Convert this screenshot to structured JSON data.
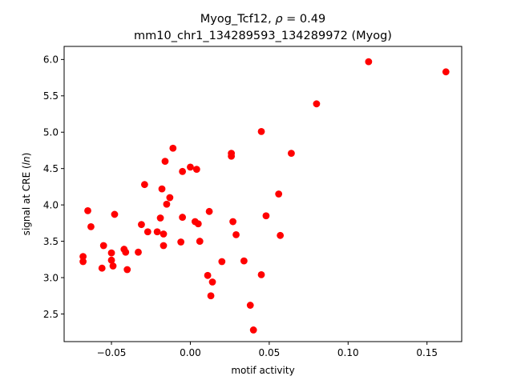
{
  "chart_data": {
    "type": "scatter",
    "title_line1_prefix": "Myog_Tcf12, ",
    "title_line1_rho_symbol": "ρ",
    "title_line1_rho_value": " = 0.49",
    "title_line2": "mm10_chr1_134289593_134289972 (Myog)",
    "xlabel": "motif activity",
    "ylabel_prefix": "signal at CRE (",
    "ylabel_italic": "ln",
    "ylabel_suffix": ")",
    "xlim": [
      -0.08,
      0.172
    ],
    "ylim": [
      2.12,
      6.18
    ],
    "xticks": [
      {
        "value": -0.05,
        "label": "−0.05"
      },
      {
        "value": 0.0,
        "label": "0.00"
      },
      {
        "value": 0.05,
        "label": "0.05"
      },
      {
        "value": 0.1,
        "label": "0.10"
      },
      {
        "value": 0.15,
        "label": "0.15"
      }
    ],
    "yticks": [
      {
        "value": 2.5,
        "label": "2.5"
      },
      {
        "value": 3.0,
        "label": "3.0"
      },
      {
        "value": 3.5,
        "label": "3.5"
      },
      {
        "value": 4.0,
        "label": "4.0"
      },
      {
        "value": 4.5,
        "label": "4.5"
      },
      {
        "value": 5.0,
        "label": "5.0"
      },
      {
        "value": 5.5,
        "label": "5.5"
      },
      {
        "value": 6.0,
        "label": "6.0"
      }
    ],
    "grid": false,
    "point_color": "#ff0000",
    "points": [
      {
        "x": -0.068,
        "y": 3.29
      },
      {
        "x": -0.068,
        "y": 3.22
      },
      {
        "x": -0.065,
        "y": 3.92
      },
      {
        "x": -0.063,
        "y": 3.7
      },
      {
        "x": -0.056,
        "y": 3.13
      },
      {
        "x": -0.055,
        "y": 3.44
      },
      {
        "x": -0.05,
        "y": 3.34
      },
      {
        "x": -0.05,
        "y": 3.24
      },
      {
        "x": -0.049,
        "y": 3.16
      },
      {
        "x": -0.048,
        "y": 3.87
      },
      {
        "x": -0.042,
        "y": 3.39
      },
      {
        "x": -0.041,
        "y": 3.35
      },
      {
        "x": -0.04,
        "y": 3.11
      },
      {
        "x": -0.033,
        "y": 3.35
      },
      {
        "x": -0.031,
        "y": 3.73
      },
      {
        "x": -0.029,
        "y": 4.28
      },
      {
        "x": -0.027,
        "y": 3.63
      },
      {
        "x": -0.021,
        "y": 3.63
      },
      {
        "x": -0.019,
        "y": 3.82
      },
      {
        "x": -0.018,
        "y": 4.22
      },
      {
        "x": -0.017,
        "y": 3.6
      },
      {
        "x": -0.017,
        "y": 3.44
      },
      {
        "x": -0.016,
        "y": 4.6
      },
      {
        "x": -0.015,
        "y": 4.01
      },
      {
        "x": -0.013,
        "y": 4.1
      },
      {
        "x": -0.011,
        "y": 4.78
      },
      {
        "x": -0.006,
        "y": 3.49
      },
      {
        "x": -0.005,
        "y": 4.46
      },
      {
        "x": -0.005,
        "y": 3.83
      },
      {
        "x": 0.0,
        "y": 4.52
      },
      {
        "x": 0.003,
        "y": 3.77
      },
      {
        "x": 0.004,
        "y": 4.49
      },
      {
        "x": 0.005,
        "y": 3.74
      },
      {
        "x": 0.006,
        "y": 3.5
      },
      {
        "x": 0.011,
        "y": 3.03
      },
      {
        "x": 0.012,
        "y": 3.91
      },
      {
        "x": 0.013,
        "y": 2.75
      },
      {
        "x": 0.014,
        "y": 2.94
      },
      {
        "x": 0.02,
        "y": 3.22
      },
      {
        "x": 0.026,
        "y": 4.71
      },
      {
        "x": 0.026,
        "y": 4.67
      },
      {
        "x": 0.027,
        "y": 3.77
      },
      {
        "x": 0.029,
        "y": 3.59
      },
      {
        "x": 0.034,
        "y": 3.23
      },
      {
        "x": 0.038,
        "y": 2.62
      },
      {
        "x": 0.04,
        "y": 2.28
      },
      {
        "x": 0.045,
        "y": 3.04
      },
      {
        "x": 0.045,
        "y": 5.01
      },
      {
        "x": 0.048,
        "y": 3.85
      },
      {
        "x": 0.056,
        "y": 4.15
      },
      {
        "x": 0.057,
        "y": 3.58
      },
      {
        "x": 0.064,
        "y": 4.71
      },
      {
        "x": 0.08,
        "y": 5.39
      },
      {
        "x": 0.113,
        "y": 5.97
      },
      {
        "x": 0.162,
        "y": 5.83
      }
    ]
  }
}
